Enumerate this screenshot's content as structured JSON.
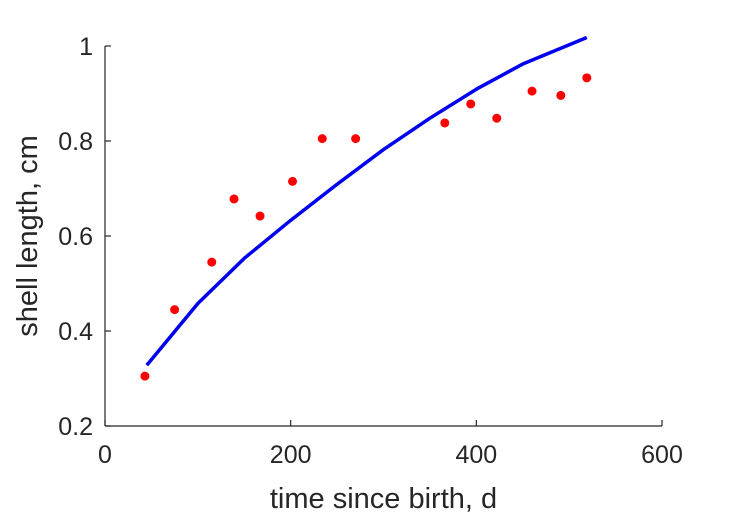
{
  "chart_data": {
    "type": "scatter",
    "title": "",
    "xlabel": "time since birth, d",
    "ylabel": "shell length, cm",
    "xlim": [
      0,
      600
    ],
    "ylim": [
      0.2,
      1.0
    ],
    "xticks": [
      0,
      200,
      400,
      600
    ],
    "yticks": [
      0.2,
      0.4,
      0.6,
      0.8,
      1.0
    ],
    "xtick_labels": [
      "0",
      "200",
      "400",
      "600"
    ],
    "ytick_labels": [
      "0.2",
      "0.4",
      "0.6",
      "0.8",
      "1"
    ],
    "grid": false,
    "series": [
      {
        "type": "scatter",
        "color": "#ff0000",
        "x": [
          43,
          75,
          115,
          139,
          167,
          202,
          234,
          270,
          366,
          394,
          422,
          460,
          491,
          519
        ],
        "y": [
          0.305,
          0.445,
          0.545,
          0.678,
          0.642,
          0.715,
          0.805,
          0.805,
          0.838,
          0.878,
          0.848,
          0.905,
          0.896,
          0.933
        ]
      },
      {
        "type": "line",
        "color": "#0000ee",
        "x": [
          45,
          100,
          150,
          200,
          250,
          300,
          350,
          400,
          450,
          519
        ],
        "y": [
          0.328,
          0.458,
          0.553,
          0.633,
          0.709,
          0.782,
          0.848,
          0.909,
          0.962,
          1.018
        ]
      }
    ]
  }
}
